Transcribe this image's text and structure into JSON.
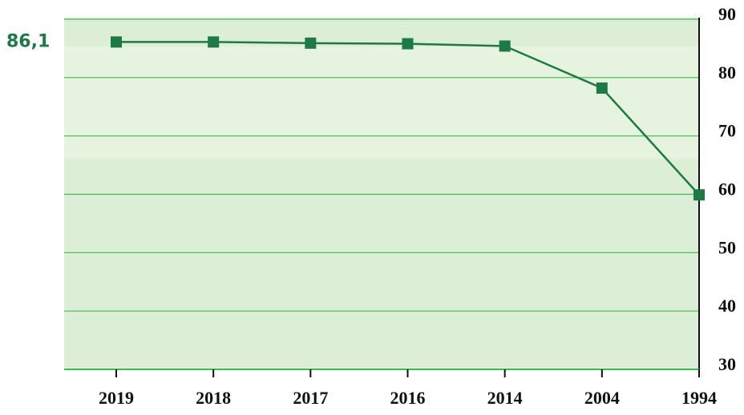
{
  "chart_data": {
    "type": "line",
    "categories": [
      "2019",
      "2018",
      "2017",
      "2016",
      "2014",
      "2004",
      "1994"
    ],
    "series": [
      {
        "color": "#1e7a45",
        "values": [
          86.1,
          86.1,
          85.9,
          85.8,
          85.4,
          78.2,
          59.9
        ],
        "value_labels": [
          "86,1",
          null,
          null,
          null,
          null,
          null,
          null
        ]
      }
    ],
    "ylim": [
      30,
      90
    ],
    "yticks": [
      30,
      40,
      50,
      60,
      70,
      80,
      90
    ],
    "grid": true
  }
}
